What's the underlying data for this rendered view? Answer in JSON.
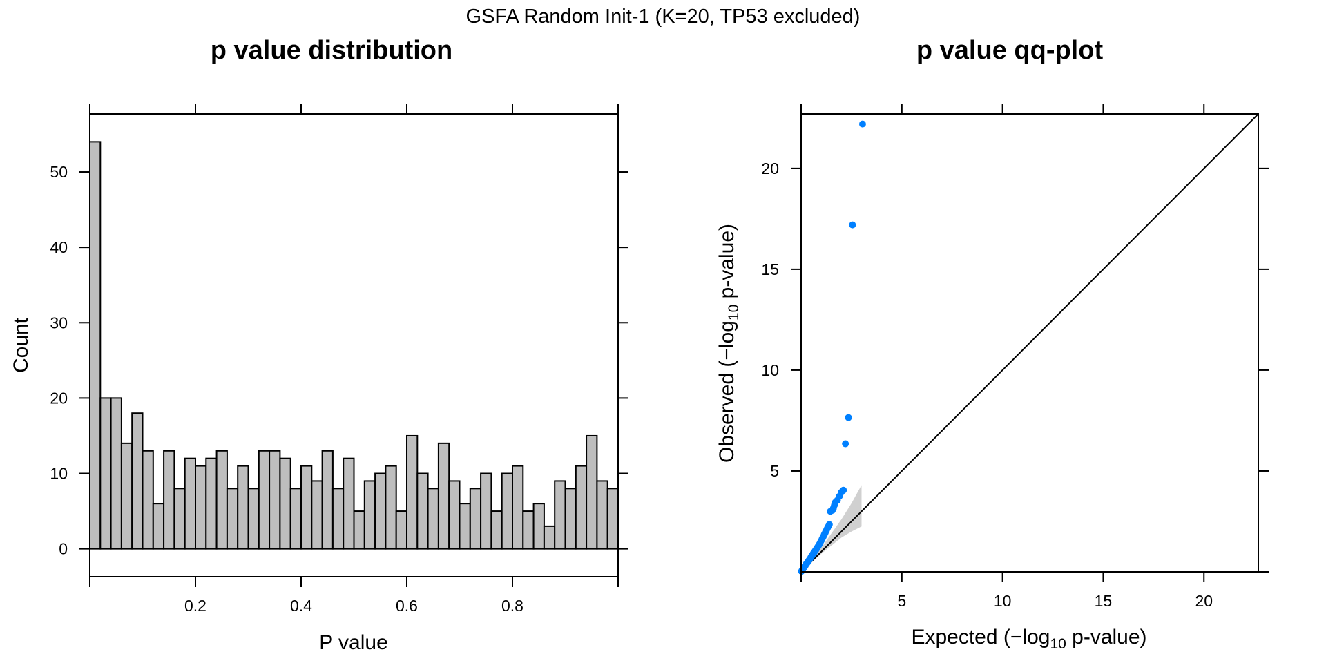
{
  "figure_title": "GSFA Random Init-1 (K=20, TP53 excluded)",
  "chart_data": [
    {
      "type": "bar",
      "title": "p value distribution",
      "xlabel": "P value",
      "ylabel": "Count",
      "xlim": [
        0,
        1
      ],
      "ylim": [
        -3.7,
        57.7
      ],
      "x_ticks": [
        "0.2",
        "0.4",
        "0.6",
        "0.8"
      ],
      "y_ticks": [
        "0",
        "10",
        "20",
        "30",
        "40",
        "50"
      ],
      "bin_width": 0.02,
      "values": [
        54,
        20,
        20,
        14,
        18,
        13,
        6,
        13,
        8,
        12,
        11,
        12,
        13,
        8,
        11,
        8,
        13,
        13,
        12,
        8,
        11,
        9,
        13,
        8,
        12,
        5,
        9,
        10,
        11,
        5,
        15,
        10,
        8,
        14,
        9,
        6,
        8,
        10,
        5,
        10,
        11,
        5,
        6,
        3,
        9,
        8,
        11,
        15,
        9,
        8
      ],
      "grid": false
    },
    {
      "type": "scatter",
      "title": "p value qq-plot",
      "xlabel_parts": [
        "Expected (",
        "−",
        "log",
        "10",
        " p-value)"
      ],
      "ylabel_parts": [
        "Observed (",
        "−",
        "log",
        "10",
        " p-value)"
      ],
      "xlim": [
        0,
        22.7
      ],
      "ylim": [
        0,
        22.7
      ],
      "x_ticks": [
        "5",
        "10",
        "15",
        "20"
      ],
      "y_ticks": [
        "5",
        "10",
        "15",
        "20"
      ],
      "reference_line": "y = x",
      "confidence_band": {
        "x": [
          0,
          0.5,
          1.0,
          1.5,
          2.0,
          2.5,
          3.0
        ],
        "lower": [
          0,
          0.45,
          0.9,
          1.3,
          1.7,
          2.0,
          2.25
        ],
        "upper": [
          0,
          0.6,
          1.2,
          1.9,
          2.6,
          3.4,
          4.3
        ]
      },
      "points": [
        [
          0.02,
          0.03
        ],
        [
          0.05,
          0.08
        ],
        [
          0.08,
          0.12
        ],
        [
          0.1,
          0.15
        ],
        [
          0.12,
          0.18
        ],
        [
          0.15,
          0.22
        ],
        [
          0.18,
          0.27
        ],
        [
          0.2,
          0.3
        ],
        [
          0.23,
          0.35
        ],
        [
          0.26,
          0.4
        ],
        [
          0.3,
          0.45
        ],
        [
          0.34,
          0.5
        ],
        [
          0.38,
          0.56
        ],
        [
          0.42,
          0.62
        ],
        [
          0.46,
          0.68
        ],
        [
          0.5,
          0.75
        ],
        [
          0.55,
          0.82
        ],
        [
          0.6,
          0.9
        ],
        [
          0.65,
          0.97
        ],
        [
          0.7,
          1.05
        ],
        [
          0.75,
          1.12
        ],
        [
          0.8,
          1.2
        ],
        [
          0.85,
          1.28
        ],
        [
          0.9,
          1.36
        ],
        [
          0.95,
          1.45
        ],
        [
          1.0,
          1.55
        ],
        [
          1.05,
          1.65
        ],
        [
          1.1,
          1.75
        ],
        [
          1.15,
          1.85
        ],
        [
          1.2,
          1.95
        ],
        [
          1.25,
          2.05
        ],
        [
          1.3,
          2.15
        ],
        [
          1.35,
          2.25
        ],
        [
          1.4,
          2.35
        ],
        [
          1.45,
          3.0
        ],
        [
          1.55,
          3.05
        ],
        [
          1.6,
          3.15
        ],
        [
          1.65,
          3.3
        ],
        [
          1.7,
          3.45
        ],
        [
          1.8,
          3.55
        ],
        [
          1.9,
          3.75
        ],
        [
          2.0,
          3.95
        ],
        [
          2.1,
          4.05
        ],
        [
          2.2,
          6.35
        ],
        [
          2.35,
          7.65
        ],
        [
          2.55,
          17.2
        ],
        [
          3.05,
          22.2
        ]
      ],
      "point_color": "#0080ff",
      "grid": false
    }
  ]
}
